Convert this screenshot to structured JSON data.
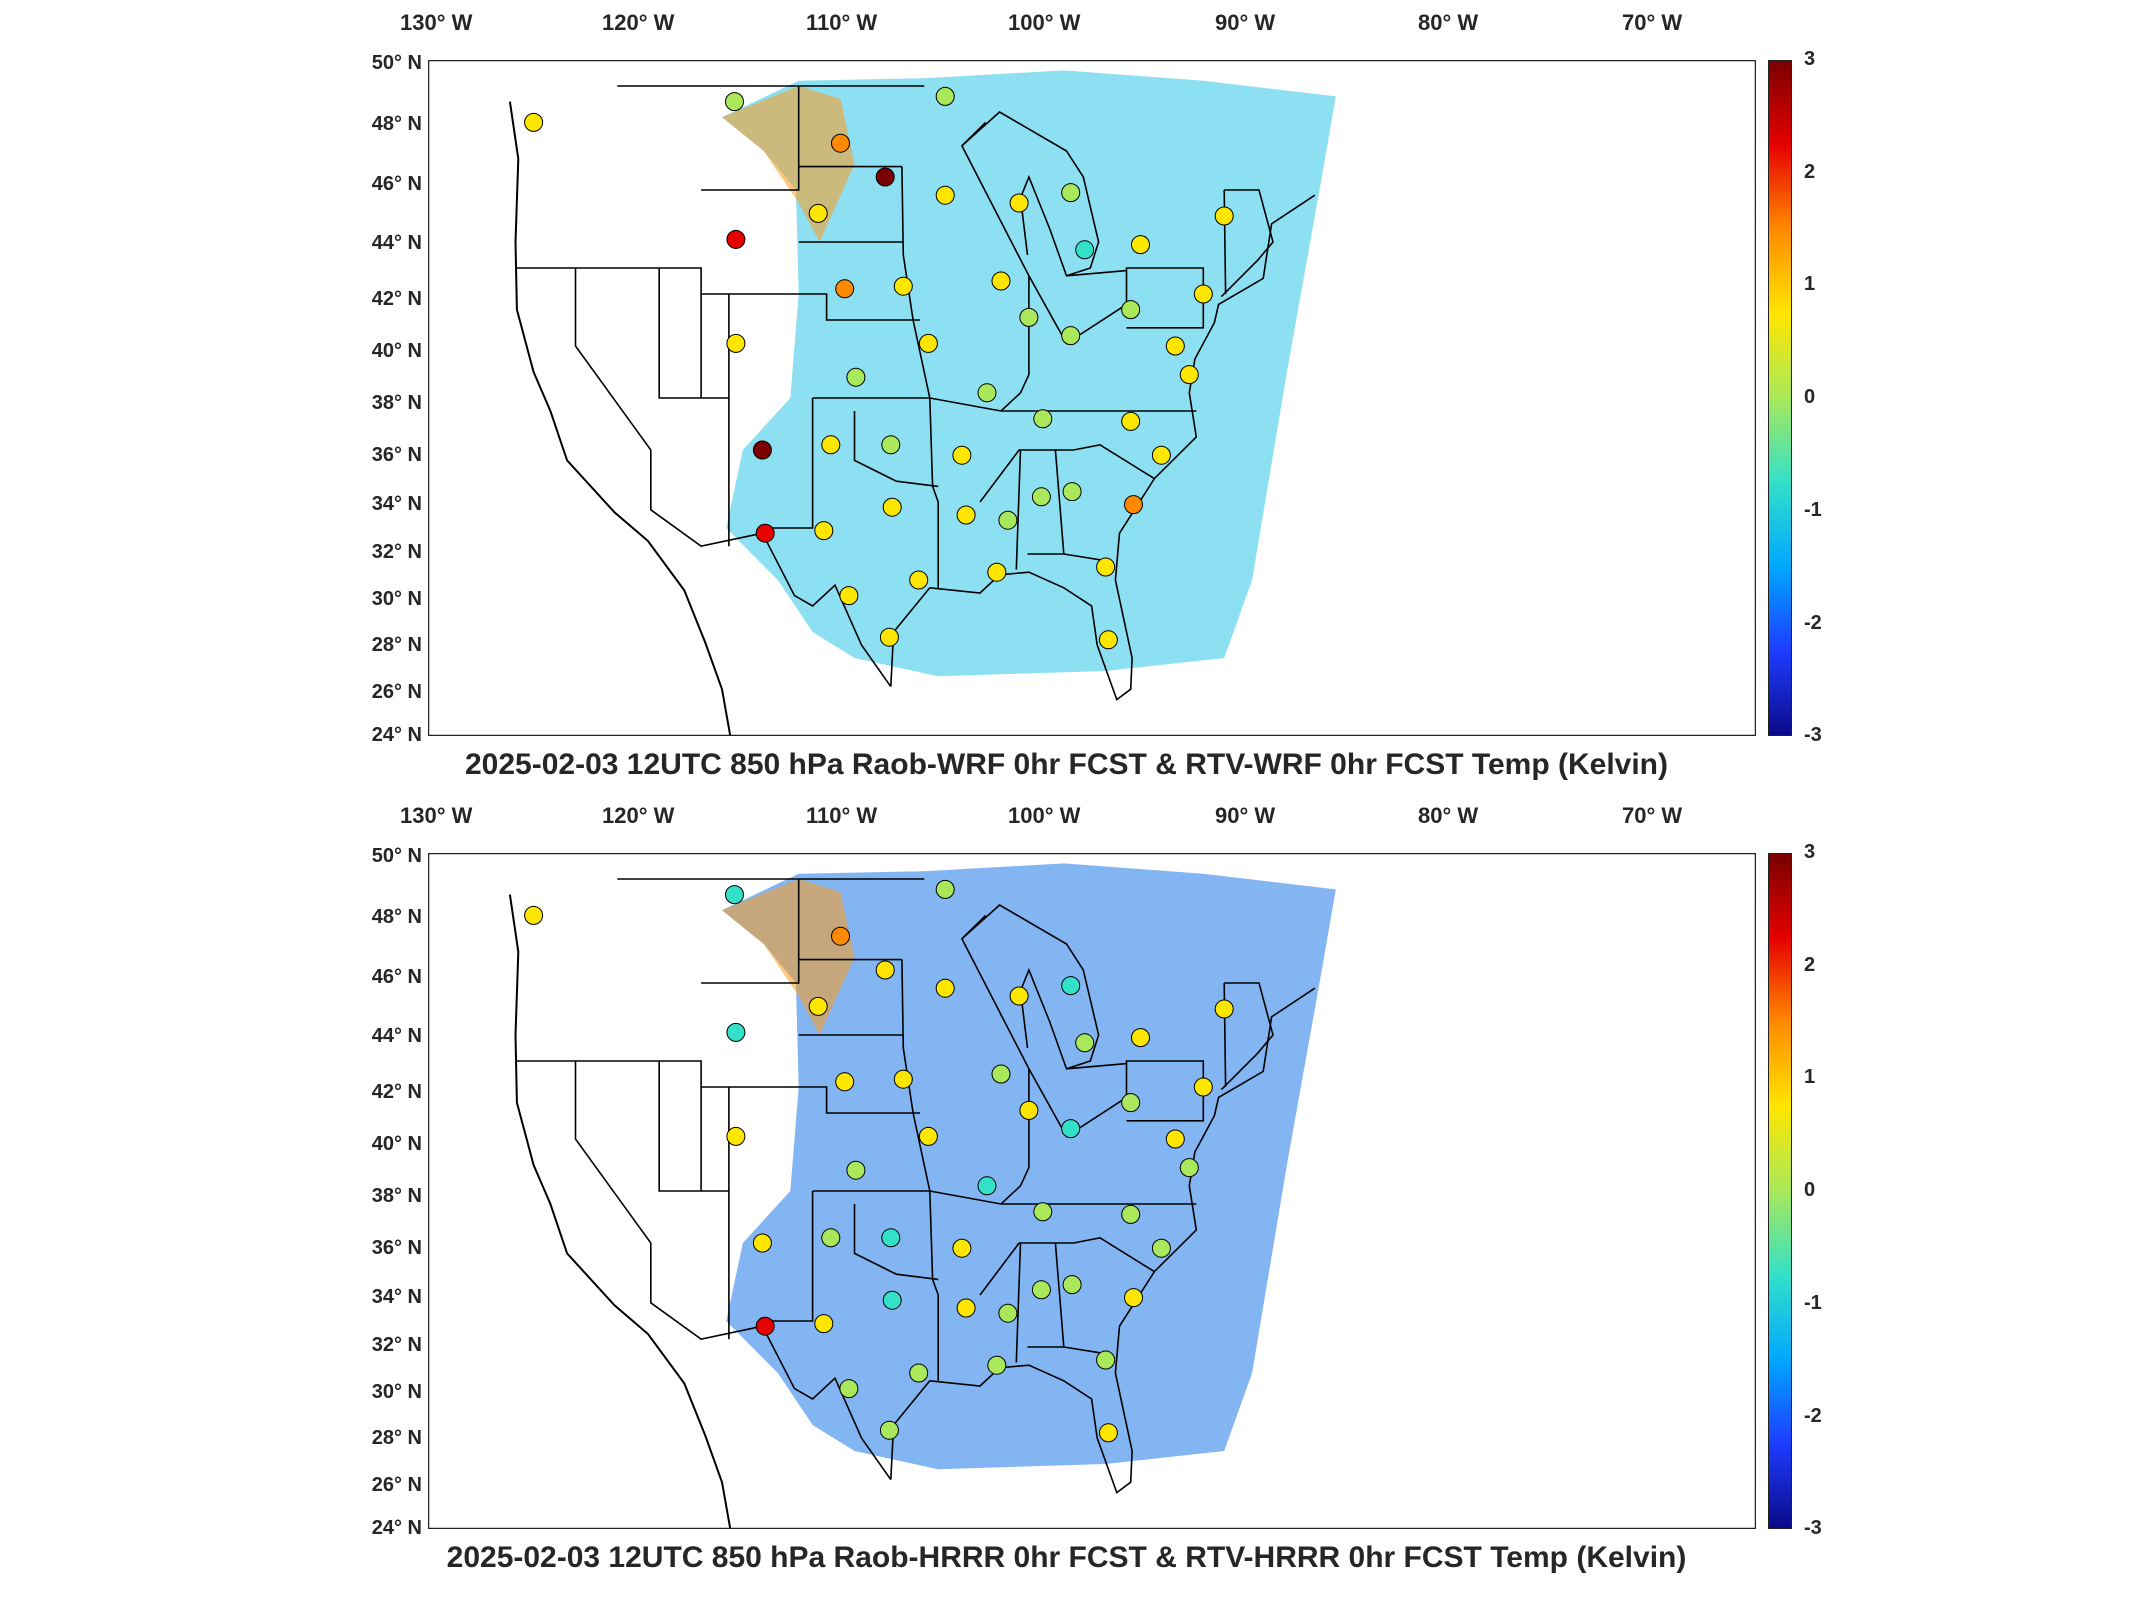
{
  "colorbar": {
    "ticks": [
      "3",
      "2",
      "1",
      "0",
      "-1",
      "-2",
      "-3"
    ],
    "colors": [
      "#0a0a8a",
      "#1e3cff",
      "#00a8ff",
      "#33e0c8",
      "#a8e85a",
      "#ffe600",
      "#ff8a00",
      "#e60000",
      "#7a0000"
    ]
  },
  "axes": {
    "lon_labels": [
      "130° W",
      "120° W",
      "110° W",
      "100° W",
      "90° W",
      "80° W",
      "70° W"
    ],
    "lat_labels": [
      "50° N",
      "48° N",
      "46° N",
      "44° N",
      "42° N",
      "40° N",
      "38° N",
      "36° N",
      "34° N",
      "32° N",
      "30° N",
      "28° N",
      "26° N",
      "24° N"
    ]
  },
  "panels": [
    {
      "title": "2025-02-03 12UTC 850 hPa Raob-WRF 0hr FCST & RTV-WRF 0hr FCST Temp (Kelvin)",
      "field_tint": "#2fc4e8",
      "stations": [
        {
          "lon": -123.0,
          "lat": 47.6,
          "v": 0.9
        },
        {
          "lon": -108.6,
          "lat": 48.4,
          "v": 0.3
        },
        {
          "lon": -101.0,
          "lat": 46.8,
          "v": 1.6
        },
        {
          "lon": -97.8,
          "lat": 45.5,
          "v": 2.8
        },
        {
          "lon": -93.5,
          "lat": 48.6,
          "v": 0.2
        },
        {
          "lon": -93.5,
          "lat": 44.8,
          "v": 0.8
        },
        {
          "lon": -102.6,
          "lat": 44.1,
          "v": 0.9
        },
        {
          "lon": -108.5,
          "lat": 43.1,
          "v": 2.6
        },
        {
          "lon": -88.2,
          "lat": 44.5,
          "v": 0.6
        },
        {
          "lon": -84.5,
          "lat": 44.9,
          "v": -0.1
        },
        {
          "lon": -83.5,
          "lat": 42.7,
          "v": -1.0
        },
        {
          "lon": -79.5,
          "lat": 42.9,
          "v": 0.9
        },
        {
          "lon": -73.5,
          "lat": 44.0,
          "v": 0.4
        },
        {
          "lon": -100.7,
          "lat": 41.2,
          "v": 1.4
        },
        {
          "lon": -96.5,
          "lat": 41.3,
          "v": 0.8
        },
        {
          "lon": -89.5,
          "lat": 41.5,
          "v": 0.4
        },
        {
          "lon": -87.5,
          "lat": 40.1,
          "v": 0.0
        },
        {
          "lon": -84.5,
          "lat": 39.4,
          "v": -0.2
        },
        {
          "lon": -80.2,
          "lat": 40.4,
          "v": -0.3
        },
        {
          "lon": -77.0,
          "lat": 39.0,
          "v": 0.5
        },
        {
          "lon": -75.0,
          "lat": 41.0,
          "v": 0.6
        },
        {
          "lon": -108.5,
          "lat": 39.1,
          "v": 0.9
        },
        {
          "lon": -99.9,
          "lat": 37.8,
          "v": 0.3
        },
        {
          "lon": -94.7,
          "lat": 39.1,
          "v": 0.8
        },
        {
          "lon": -90.5,
          "lat": 37.2,
          "v": 0.2
        },
        {
          "lon": -86.5,
          "lat": 36.2,
          "v": 0.1
        },
        {
          "lon": -80.2,
          "lat": 36.1,
          "v": 0.6
        },
        {
          "lon": -76.0,
          "lat": 37.9,
          "v": 0.8
        },
        {
          "lon": -106.6,
          "lat": 35.0,
          "v": 2.8
        },
        {
          "lon": -101.7,
          "lat": 35.2,
          "v": 0.8
        },
        {
          "lon": -97.4,
          "lat": 35.2,
          "v": 0.1
        },
        {
          "lon": -92.3,
          "lat": 34.8,
          "v": 0.7
        },
        {
          "lon": -86.6,
          "lat": 33.2,
          "v": 0.3
        },
        {
          "lon": -84.4,
          "lat": 33.4,
          "v": 0.2
        },
        {
          "lon": -78.0,
          "lat": 34.8,
          "v": 0.4
        },
        {
          "lon": -80.0,
          "lat": 32.9,
          "v": 1.2
        },
        {
          "lon": -106.4,
          "lat": 31.8,
          "v": 2.0
        },
        {
          "lon": -102.2,
          "lat": 31.9,
          "v": 1.0
        },
        {
          "lon": -97.3,
          "lat": 32.8,
          "v": 0.8
        },
        {
          "lon": -92.0,
          "lat": 32.5,
          "v": 0.9
        },
        {
          "lon": -89.0,
          "lat": 32.3,
          "v": 0.3
        },
        {
          "lon": -95.4,
          "lat": 30.0,
          "v": 0.9
        },
        {
          "lon": -89.8,
          "lat": 30.3,
          "v": 0.6
        },
        {
          "lon": -82.0,
          "lat": 30.5,
          "v": 1.0
        },
        {
          "lon": -100.4,
          "lat": 29.4,
          "v": 0.6
        },
        {
          "lon": -97.5,
          "lat": 27.8,
          "v": 0.4
        },
        {
          "lon": -81.8,
          "lat": 27.7,
          "v": 0.5
        }
      ]
    },
    {
      "title": "2025-02-03 12UTC 850 hPa Raob-HRRR 0hr FCST & RTV-HRRR 0hr FCST Temp (Kelvin)",
      "field_tint": "#1c78e8",
      "stations": [
        {
          "lon": -123.0,
          "lat": 47.6,
          "v": 0.5
        },
        {
          "lon": -108.6,
          "lat": 48.4,
          "v": -0.6
        },
        {
          "lon": -101.0,
          "lat": 46.8,
          "v": 1.5
        },
        {
          "lon": -97.8,
          "lat": 45.5,
          "v": 1.1
        },
        {
          "lon": -93.5,
          "lat": 48.6,
          "v": 0.0
        },
        {
          "lon": -93.5,
          "lat": 44.8,
          "v": 0.8
        },
        {
          "lon": -102.6,
          "lat": 44.1,
          "v": 0.8
        },
        {
          "lon": -108.5,
          "lat": 43.1,
          "v": -0.4
        },
        {
          "lon": -88.2,
          "lat": 44.5,
          "v": 0.5
        },
        {
          "lon": -84.5,
          "lat": 44.9,
          "v": -1.0
        },
        {
          "lon": -83.5,
          "lat": 42.7,
          "v": 0.2
        },
        {
          "lon": -79.5,
          "lat": 42.9,
          "v": 0.4
        },
        {
          "lon": -73.5,
          "lat": 44.0,
          "v": 0.4
        },
        {
          "lon": -100.7,
          "lat": 41.2,
          "v": 1.0
        },
        {
          "lon": -96.5,
          "lat": 41.3,
          "v": 0.4
        },
        {
          "lon": -89.5,
          "lat": 41.5,
          "v": 0.3
        },
        {
          "lon": -87.5,
          "lat": 40.1,
          "v": 0.5
        },
        {
          "lon": -84.5,
          "lat": 39.4,
          "v": -0.5
        },
        {
          "lon": -80.2,
          "lat": 40.4,
          "v": 0.2
        },
        {
          "lon": -77.0,
          "lat": 39.0,
          "v": 0.4
        },
        {
          "lon": -75.0,
          "lat": 41.0,
          "v": 0.5
        },
        {
          "lon": -108.5,
          "lat": 39.1,
          "v": 0.9
        },
        {
          "lon": -99.9,
          "lat": 37.8,
          "v": 0.3
        },
        {
          "lon": -94.7,
          "lat": 39.1,
          "v": 0.4
        },
        {
          "lon": -90.5,
          "lat": 37.2,
          "v": -0.8
        },
        {
          "lon": -86.5,
          "lat": 36.2,
          "v": 0.0
        },
        {
          "lon": -80.2,
          "lat": 36.1,
          "v": -0.1
        },
        {
          "lon": -76.0,
          "lat": 37.9,
          "v": 0.2
        },
        {
          "lon": -106.6,
          "lat": 35.0,
          "v": 1.0
        },
        {
          "lon": -101.7,
          "lat": 35.2,
          "v": -0.2
        },
        {
          "lon": -97.4,
          "lat": 35.2,
          "v": -0.6
        },
        {
          "lon": -92.3,
          "lat": 34.8,
          "v": 0.9
        },
        {
          "lon": -86.6,
          "lat": 33.2,
          "v": 0.3
        },
        {
          "lon": -84.4,
          "lat": 33.4,
          "v": 0.2
        },
        {
          "lon": -78.0,
          "lat": 34.8,
          "v": 0.0
        },
        {
          "lon": -80.0,
          "lat": 32.9,
          "v": 0.4
        },
        {
          "lon": -106.4,
          "lat": 31.8,
          "v": 2.0
        },
        {
          "lon": -102.2,
          "lat": 31.9,
          "v": 0.9
        },
        {
          "lon": -97.3,
          "lat": 32.8,
          "v": -0.4
        },
        {
          "lon": -92.0,
          "lat": 32.5,
          "v": 0.4
        },
        {
          "lon": -89.0,
          "lat": 32.3,
          "v": -0.3
        },
        {
          "lon": -95.4,
          "lat": 30.0,
          "v": 0.1
        },
        {
          "lon": -89.8,
          "lat": 30.3,
          "v": 0.3
        },
        {
          "lon": -82.0,
          "lat": 30.5,
          "v": 0.2
        },
        {
          "lon": -100.4,
          "lat": 29.4,
          "v": 0.2
        },
        {
          "lon": -97.5,
          "lat": 27.8,
          "v": 0.3
        },
        {
          "lon": -81.8,
          "lat": 27.7,
          "v": 0.4
        }
      ]
    }
  ]
}
